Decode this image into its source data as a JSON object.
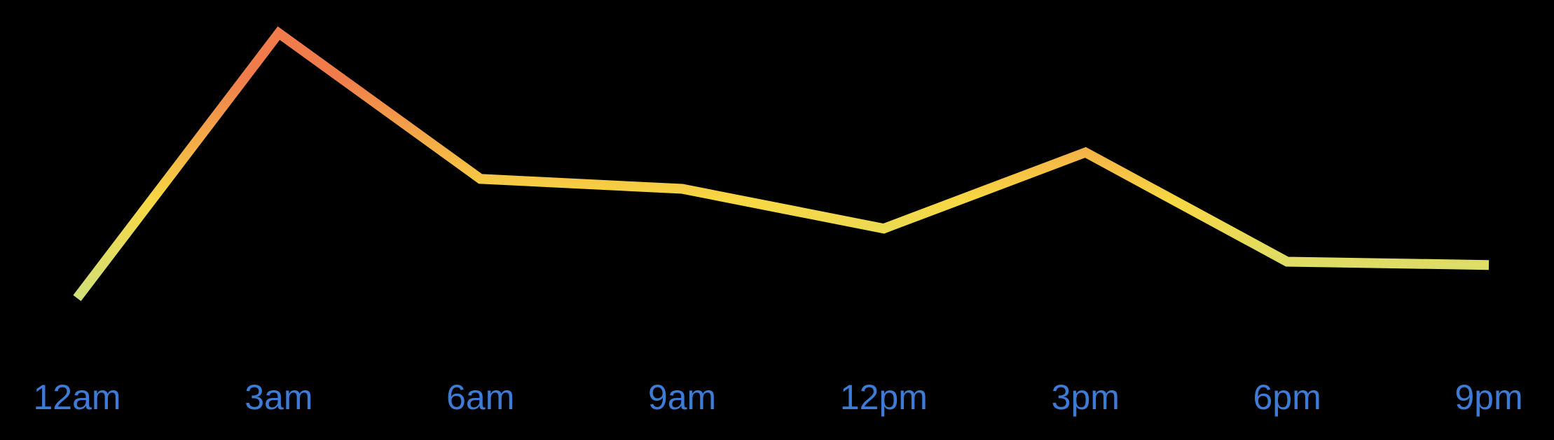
{
  "chart_data": {
    "type": "line",
    "categories": [
      "12am",
      "3am",
      "6am",
      "9am",
      "12pm",
      "3pm",
      "6pm",
      "9pm"
    ],
    "series": [
      {
        "values": [
          20,
          100,
          56,
          53,
          41,
          64,
          31,
          30
        ]
      }
    ],
    "ylim": [
      0,
      110
    ],
    "grid": false,
    "legend": "none",
    "colors": {
      "background": "#000000",
      "tick_label": "#3d7bd4",
      "line_low": "#cfe07a",
      "line_mid": "#f7d743",
      "line_high": "#f07c4c"
    }
  }
}
